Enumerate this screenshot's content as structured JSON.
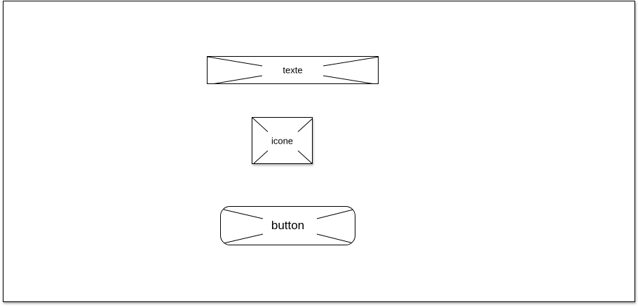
{
  "wireframe": {
    "text_placeholder": {
      "label": "texte"
    },
    "icon_placeholder": {
      "label": "icone"
    },
    "button_placeholder": {
      "label": "button"
    }
  },
  "colors": {
    "stroke": "#000000",
    "background": "#ffffff"
  }
}
